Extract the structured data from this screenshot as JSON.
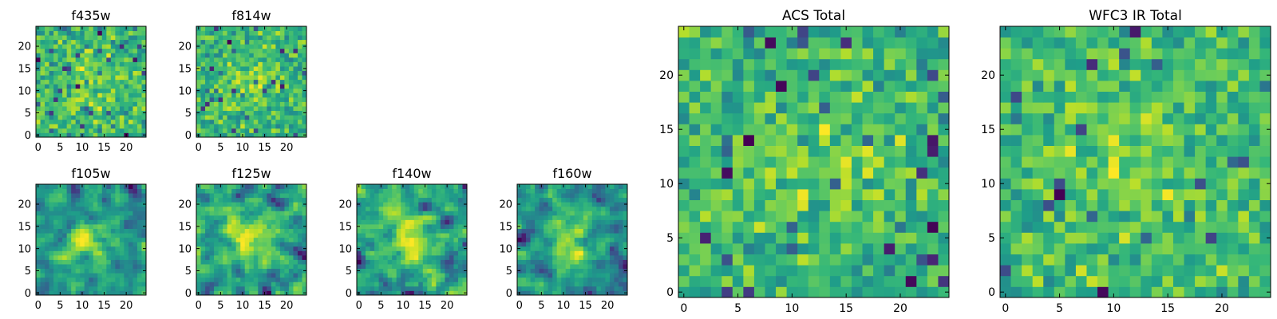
{
  "chart_data": [
    {
      "type": "heatmap",
      "title": "f435w",
      "grid_size": 25,
      "xlim": [
        -0.5,
        24.5
      ],
      "ylim": [
        -0.5,
        24.5
      ],
      "xticks": [
        0,
        5,
        10,
        15,
        20
      ],
      "yticks": [
        0,
        5,
        10,
        15,
        20
      ],
      "colormap": "viridis",
      "pattern": "random noise",
      "seed": 11,
      "smoothing": 0
    },
    {
      "type": "heatmap",
      "title": "f814w",
      "grid_size": 25,
      "xlim": [
        -0.5,
        24.5
      ],
      "ylim": [
        -0.5,
        24.5
      ],
      "xticks": [
        0,
        5,
        10,
        15,
        20
      ],
      "yticks": [
        0,
        5,
        10,
        15,
        20
      ],
      "colormap": "viridis",
      "pattern": "random noise",
      "seed": 23,
      "smoothing": 0
    },
    {
      "type": "heatmap",
      "title": "f105w",
      "grid_size": 25,
      "xlim": [
        -0.5,
        24.5
      ],
      "ylim": [
        -0.5,
        24.5
      ],
      "xticks": [
        0,
        5,
        10,
        15,
        20
      ],
      "yticks": [
        0,
        5,
        10,
        15,
        20
      ],
      "colormap": "viridis",
      "pattern": "smoothed noise",
      "seed": 37,
      "smoothing": 1
    },
    {
      "type": "heatmap",
      "title": "f125w",
      "grid_size": 25,
      "xlim": [
        -0.5,
        24.5
      ],
      "ylim": [
        -0.5,
        24.5
      ],
      "xticks": [
        0,
        5,
        10,
        15,
        20
      ],
      "yticks": [
        0,
        5,
        10,
        15,
        20
      ],
      "colormap": "viridis",
      "pattern": "smoothed noise",
      "seed": 41,
      "smoothing": 1
    },
    {
      "type": "heatmap",
      "title": "f140w",
      "grid_size": 25,
      "xlim": [
        -0.5,
        24.5
      ],
      "ylim": [
        -0.5,
        24.5
      ],
      "xticks": [
        0,
        5,
        10,
        15,
        20
      ],
      "yticks": [
        0,
        5,
        10,
        15,
        20
      ],
      "colormap": "viridis",
      "pattern": "smoothed noise",
      "seed": 53,
      "smoothing": 1
    },
    {
      "type": "heatmap",
      "title": "f160w",
      "grid_size": 25,
      "xlim": [
        -0.5,
        24.5
      ],
      "ylim": [
        -0.5,
        24.5
      ],
      "xticks": [
        0,
        5,
        10,
        15,
        20
      ],
      "yticks": [
        0,
        5,
        10,
        15,
        20
      ],
      "colormap": "viridis",
      "pattern": "smoothed noise",
      "seed": 67,
      "smoothing": 1
    },
    {
      "type": "heatmap",
      "title": "ACS Total",
      "grid_size": 25,
      "xlim": [
        -0.5,
        24.5
      ],
      "ylim": [
        -0.5,
        24.5
      ],
      "xticks": [
        0,
        5,
        10,
        15,
        20
      ],
      "yticks": [
        0,
        5,
        10,
        15,
        20
      ],
      "colormap": "viridis",
      "pattern": "random noise",
      "seed": 79,
      "smoothing": 0
    },
    {
      "type": "heatmap",
      "title": "WFC3 IR Total",
      "grid_size": 25,
      "xlim": [
        -0.5,
        24.5
      ],
      "ylim": [
        -0.5,
        24.5
      ],
      "xticks": [
        0,
        5,
        10,
        15,
        20
      ],
      "yticks": [
        0,
        5,
        10,
        15,
        20
      ],
      "colormap": "viridis",
      "pattern": "random noise",
      "seed": 97,
      "smoothing": 0
    }
  ]
}
